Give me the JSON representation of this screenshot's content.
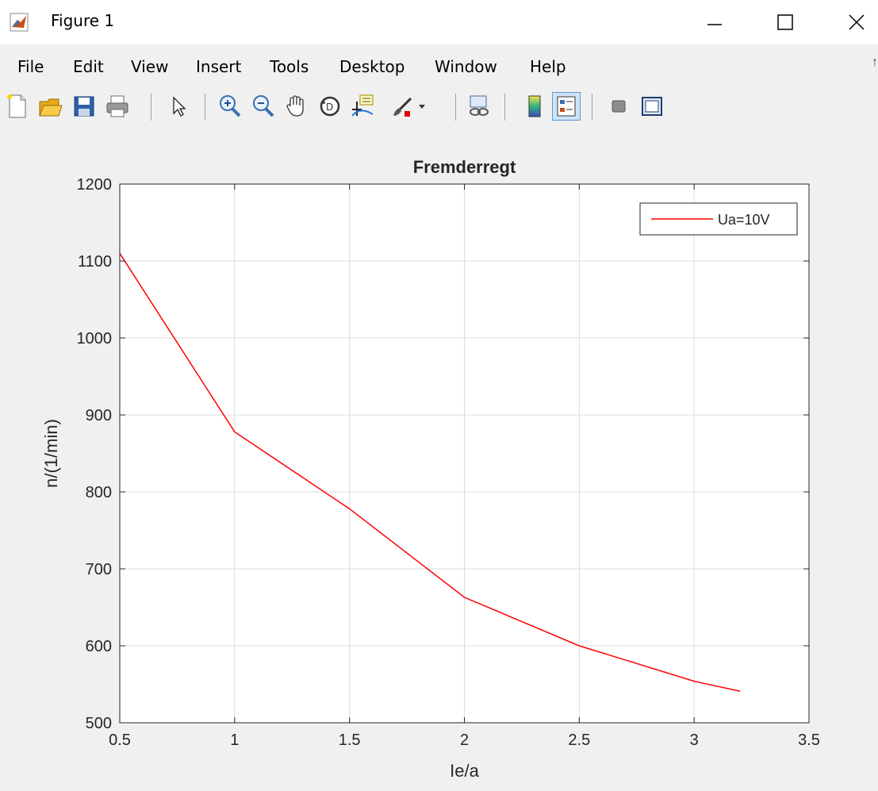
{
  "window": {
    "title": "Figure 1",
    "controls": [
      "minimize",
      "maximize",
      "close"
    ]
  },
  "menu": {
    "items": [
      "File",
      "Edit",
      "View",
      "Insert",
      "Tools",
      "Desktop",
      "Window",
      "Help"
    ],
    "overflow": "↑"
  },
  "toolbar": {
    "buttons": [
      {
        "name": "new-figure-button",
        "icon": "new-document-icon"
      },
      {
        "name": "open-file-button",
        "icon": "open-folder-icon"
      },
      {
        "name": "save-button",
        "icon": "save-disk-icon"
      },
      {
        "name": "print-button",
        "icon": "printer-icon"
      },
      {
        "name": "edit-plot-button",
        "icon": "arrow-pointer-icon"
      },
      {
        "name": "zoom-in-button",
        "icon": "zoom-in-icon"
      },
      {
        "name": "zoom-out-button",
        "icon": "zoom-out-icon"
      },
      {
        "name": "pan-button",
        "icon": "hand-icon"
      },
      {
        "name": "rotate-3d-button",
        "icon": "rotate-3d-icon"
      },
      {
        "name": "data-cursor-button",
        "icon": "data-cursor-icon"
      },
      {
        "name": "brush-button",
        "icon": "brush-icon"
      },
      {
        "name": "link-plot-button",
        "icon": "link-plot-icon"
      },
      {
        "name": "insert-colorbar-button",
        "icon": "colorbar-icon"
      },
      {
        "name": "insert-legend-button",
        "icon": "legend-icon",
        "pressed": true
      },
      {
        "name": "hide-plot-tools-button",
        "icon": "hide-tools-icon"
      },
      {
        "name": "show-plot-tools-button",
        "icon": "show-tools-icon"
      }
    ]
  },
  "colors": {
    "series": "#ff0000",
    "axes": "#262626",
    "grid": "#dcdcdc",
    "figure_bg": "#f0f0f0",
    "plot_bg": "#ffffff"
  },
  "chart_data": {
    "type": "line",
    "title": "Fremderregt",
    "xlabel": "Ie/a",
    "ylabel": "n/(1/min)",
    "xlim": [
      0.5,
      3.5
    ],
    "ylim": [
      500,
      1200
    ],
    "xticks": [
      "0.5",
      "1",
      "1.5",
      "2",
      "2.5",
      "3",
      "3.5"
    ],
    "yticks": [
      "500",
      "600",
      "700",
      "800",
      "900",
      "1000",
      "1100",
      "1200"
    ],
    "grid": true,
    "legend_position": "top-right",
    "series": [
      {
        "name": "Ua=10V",
        "color": "#ff0000",
        "x": [
          0.5,
          1.0,
          1.5,
          2.0,
          2.5,
          3.0,
          3.2
        ],
        "y": [
          1110,
          878,
          778,
          663,
          600,
          554,
          541
        ]
      }
    ]
  }
}
